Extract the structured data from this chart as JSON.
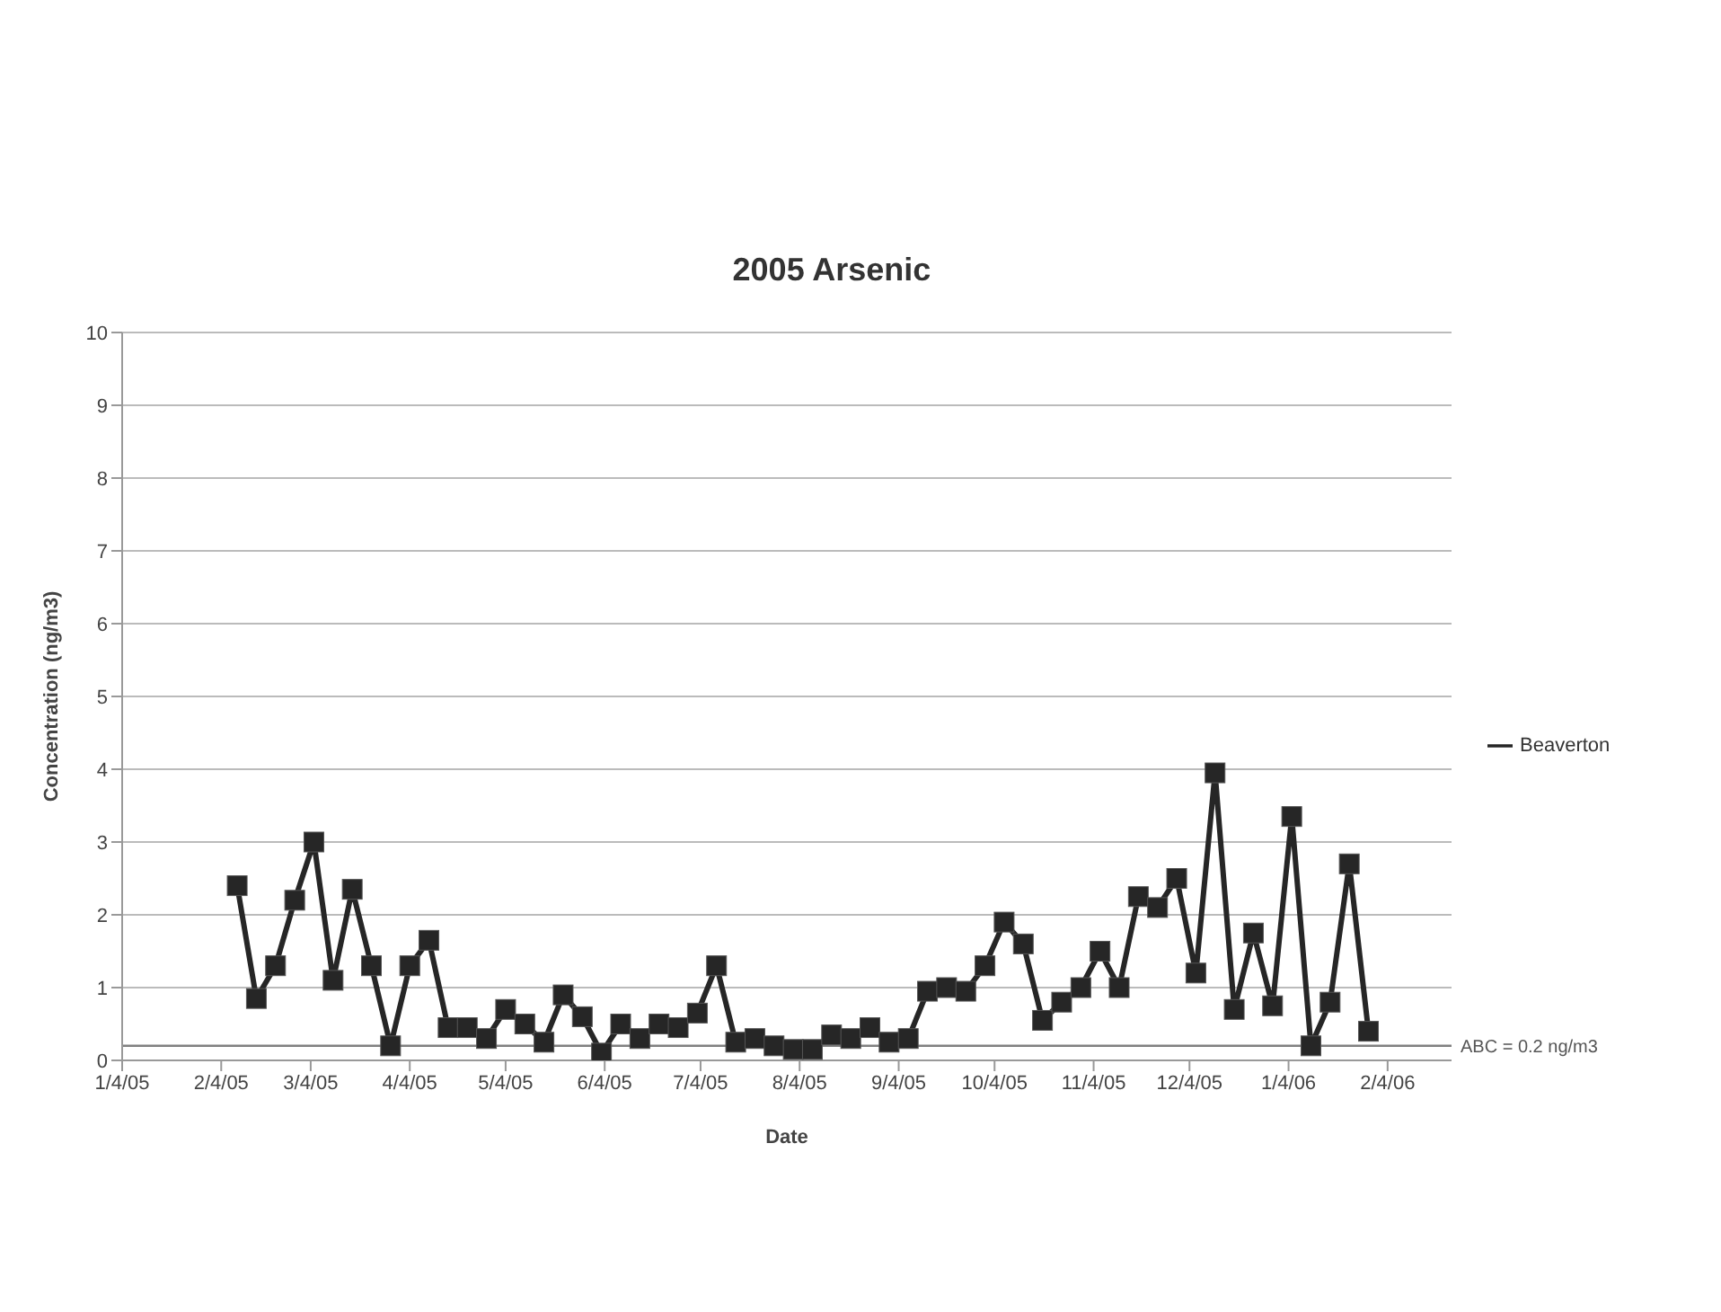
{
  "chart_data": {
    "type": "line",
    "title": "2005 Arsenic",
    "xlabel": "Date",
    "ylabel": "Concentration (ng/m3)",
    "x": [
      "2005-02-09",
      "2005-02-15",
      "2005-02-21",
      "2005-02-27",
      "2005-03-05",
      "2005-03-11",
      "2005-03-17",
      "2005-03-23",
      "2005-03-29",
      "2005-04-04",
      "2005-04-10",
      "2005-04-16",
      "2005-04-22",
      "2005-04-28",
      "2005-05-04",
      "2005-05-10",
      "2005-05-16",
      "2005-05-22",
      "2005-05-28",
      "2005-06-03",
      "2005-06-09",
      "2005-06-15",
      "2005-06-21",
      "2005-06-27",
      "2005-07-03",
      "2005-07-09",
      "2005-07-15",
      "2005-07-21",
      "2005-07-27",
      "2005-08-02",
      "2005-08-08",
      "2005-08-14",
      "2005-08-20",
      "2005-08-26",
      "2005-09-01",
      "2005-09-07",
      "2005-09-13",
      "2005-09-19",
      "2005-09-25",
      "2005-10-01",
      "2005-10-07",
      "2005-10-13",
      "2005-10-19",
      "2005-10-25",
      "2005-10-31",
      "2005-11-06",
      "2005-11-12",
      "2005-11-18",
      "2005-11-24",
      "2005-11-30",
      "2005-12-06",
      "2005-12-12",
      "2005-12-18",
      "2005-12-24",
      "2005-12-30",
      "2006-01-05",
      "2006-01-11",
      "2006-01-17",
      "2006-01-23",
      "2006-01-29"
    ],
    "series": [
      {
        "name": "Beaverton",
        "color": "#262626",
        "values": [
          2.4,
          0.85,
          1.3,
          2.2,
          3.0,
          1.1,
          2.35,
          1.3,
          0.2,
          1.3,
          1.65,
          0.45,
          0.45,
          0.3,
          0.7,
          0.5,
          0.25,
          0.9,
          0.6,
          0.1,
          0.5,
          0.3,
          0.5,
          0.45,
          0.65,
          1.3,
          0.25,
          0.3,
          0.2,
          0.15,
          0.15,
          0.35,
          0.3,
          0.45,
          0.25,
          0.3,
          0.95,
          1.0,
          0.95,
          1.3,
          1.9,
          1.6,
          0.55,
          0.8,
          1.0,
          1.5,
          1.0,
          2.25,
          2.1,
          2.5,
          1.2,
          3.95,
          0.7,
          1.75,
          0.75,
          3.35,
          0.2,
          0.8,
          2.7,
          0.4
        ]
      }
    ],
    "xlim": [
      "2005-01-04",
      "2006-02-24"
    ],
    "xticks": [
      {
        "value": "2005-01-04",
        "label": "1/4/05"
      },
      {
        "value": "2005-02-04",
        "label": "2/4/05"
      },
      {
        "value": "2005-03-04",
        "label": "3/4/05"
      },
      {
        "value": "2005-04-04",
        "label": "4/4/05"
      },
      {
        "value": "2005-05-04",
        "label": "5/4/05"
      },
      {
        "value": "2005-06-04",
        "label": "6/4/05"
      },
      {
        "value": "2005-07-04",
        "label": "7/4/05"
      },
      {
        "value": "2005-08-04",
        "label": "8/4/05"
      },
      {
        "value": "2005-09-04",
        "label": "9/4/05"
      },
      {
        "value": "2005-10-04",
        "label": "10/4/05"
      },
      {
        "value": "2005-11-04",
        "label": "11/4/05"
      },
      {
        "value": "2005-12-04",
        "label": "12/4/05"
      },
      {
        "value": "2006-01-04",
        "label": "1/4/06"
      },
      {
        "value": "2006-02-04",
        "label": "2/4/06"
      }
    ],
    "ylim": [
      0,
      10
    ],
    "yticks": [
      0,
      1,
      2,
      3,
      4,
      5,
      6,
      7,
      8,
      9,
      10
    ],
    "ref_lines": [
      {
        "axis": "y",
        "value": 0.2,
        "label": "ABC = 0.2 ng/m3",
        "color": "#808080"
      }
    ],
    "grid": "y",
    "legend": "right",
    "marker": "square",
    "line_style": "solid"
  }
}
